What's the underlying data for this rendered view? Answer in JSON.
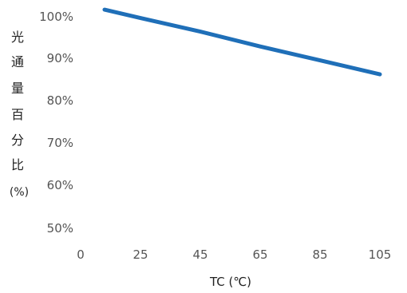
{
  "chart_data": {
    "type": "line",
    "xlabel": "TC (℃)",
    "ylabel": "光通量百分比(%)",
    "ylabel_chars": [
      "光",
      "通",
      "量",
      "百",
      "分",
      "比",
      "(%)"
    ],
    "x_ticks": [
      "0",
      "25",
      "45",
      "65",
      "85",
      "105"
    ],
    "y_ticks": [
      "50%",
      "60%",
      "70%",
      "80%",
      "90%",
      "100%"
    ],
    "ylim": [
      50,
      100
    ],
    "grid": false,
    "series": [
      {
        "color": "#1f6fb8",
        "points": [
          {
            "x": 10,
            "y": 101.5
          },
          {
            "x": 25,
            "y": 99.5
          },
          {
            "x": 45,
            "y": 96.3
          },
          {
            "x": 65,
            "y": 92.8
          },
          {
            "x": 85,
            "y": 89.5
          },
          {
            "x": 105,
            "y": 86.2
          }
        ]
      }
    ]
  }
}
